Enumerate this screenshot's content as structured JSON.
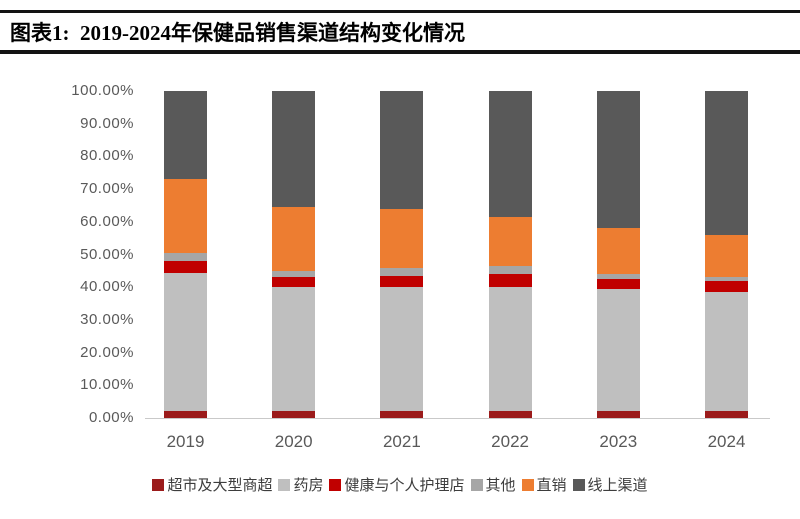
{
  "header": {
    "title": "图表1:  2019-2024年保健品销售渠道结构变化情况"
  },
  "chart_data": {
    "type": "bar",
    "stacked": true,
    "title": "2019-2024年保健品销售渠道结构变化情况",
    "unit": "percent",
    "categories": [
      "2019",
      "2020",
      "2021",
      "2022",
      "2023",
      "2024"
    ],
    "series": [
      {
        "key": "supermarket-hypermarket",
        "name": "超市及大型商超",
        "color": "#9B1B1B",
        "values": [
          2.0,
          2.0,
          2.0,
          2.0,
          2.0,
          2.0
        ]
      },
      {
        "key": "pharmacy",
        "name": "药房",
        "color": "#BFBFBF",
        "values": [
          42.5,
          38.0,
          38.0,
          38.0,
          37.5,
          36.5
        ]
      },
      {
        "key": "health-personal-care-store",
        "name": "健康与个人护理店",
        "color": "#C00000",
        "values": [
          3.5,
          3.0,
          3.5,
          4.0,
          3.0,
          3.5
        ]
      },
      {
        "key": "other",
        "name": "其他",
        "color": "#A6A6A6",
        "values": [
          2.5,
          2.0,
          2.5,
          2.5,
          1.5,
          1.0
        ]
      },
      {
        "key": "direct-selling",
        "name": "直销",
        "color": "#ED7D31",
        "values": [
          22.5,
          19.5,
          18.0,
          15.0,
          14.0,
          13.0
        ]
      },
      {
        "key": "online-channel",
        "name": "线上渠道",
        "color": "#595959",
        "values": [
          27.0,
          35.5,
          36.0,
          38.5,
          42.0,
          44.0
        ]
      }
    ],
    "y_ticks": [
      "100.00%",
      "90.00%",
      "80.00%",
      "70.00%",
      "60.00%",
      "50.00%",
      "40.00%",
      "30.00%",
      "20.00%",
      "10.00%",
      "0.00%"
    ],
    "ylim": [
      0,
      100
    ],
    "grid": false,
    "legend_position": "bottom"
  }
}
